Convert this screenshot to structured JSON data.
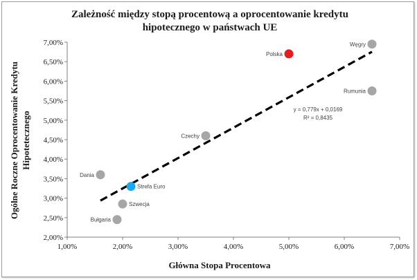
{
  "chart_data": {
    "type": "scatter",
    "title_lines": [
      "Zależność między stopą procentową a oprocentowanie kredytu",
      "hipotecznego w państwach UE"
    ],
    "xlabel": "Główna Stopa Procentowa",
    "ylabel_lines": [
      "Ogólne Roczne Oprocentowanie Kredytu",
      "Hipotetecznego"
    ],
    "xlim": [
      0.01,
      0.07
    ],
    "ylim": [
      0.02,
      0.07
    ],
    "x_ticks": [
      0.01,
      0.02,
      0.03,
      0.04,
      0.05,
      0.06,
      0.07
    ],
    "x_tick_labels": [
      "1,00%",
      "2,00%",
      "3,00%",
      "4,00%",
      "5,00%",
      "6,00%",
      "7,00%"
    ],
    "y_ticks": [
      0.02,
      0.025,
      0.03,
      0.035,
      0.04,
      0.045,
      0.05,
      0.055,
      0.06,
      0.065,
      0.07
    ],
    "y_tick_labels": [
      "2,00%",
      "2,50%",
      "3,00%",
      "3,50%",
      "4,00%",
      "4,50%",
      "5,00%",
      "5,50%",
      "6,00%",
      "6,50%",
      "7,00%"
    ],
    "points": [
      {
        "label": "Węgry",
        "x": 0.065,
        "y": 0.0695,
        "color": "#a6a6a6",
        "label_pos": "left"
      },
      {
        "label": "Polska",
        "x": 0.05,
        "y": 0.067,
        "color": "#e81c1c",
        "label_pos": "left"
      },
      {
        "label": "Rumunia",
        "x": 0.065,
        "y": 0.0575,
        "color": "#a6a6a6",
        "label_pos": "left"
      },
      {
        "label": "Czechy",
        "x": 0.035,
        "y": 0.046,
        "color": "#a6a6a6",
        "label_pos": "left"
      },
      {
        "label": "Dania",
        "x": 0.016,
        "y": 0.036,
        "color": "#a6a6a6",
        "label_pos": "left"
      },
      {
        "label": "Strefa Euro",
        "x": 0.0215,
        "y": 0.033,
        "color": "#19a9ee",
        "label_pos": "right"
      },
      {
        "label": "Szwecja",
        "x": 0.02,
        "y": 0.0285,
        "color": "#a6a6a6",
        "label_pos": "right"
      },
      {
        "label": "Bułgaria",
        "x": 0.019,
        "y": 0.0245,
        "color": "#a6a6a6",
        "label_pos": "left"
      }
    ],
    "trendline": {
      "slope": 0.779,
      "intercept": 0.0169,
      "x_range": [
        0.016,
        0.065
      ],
      "style": "dashed",
      "color": "#000000",
      "equation_text": "y = 0,779x + 0,0169",
      "r2_text": "R² = 0,8435"
    }
  }
}
